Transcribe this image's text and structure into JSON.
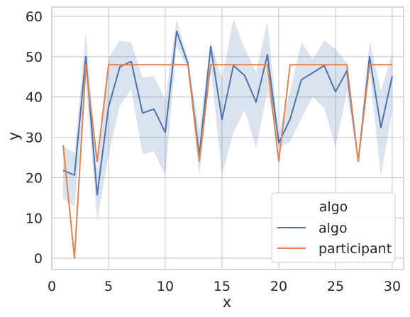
{
  "chart_data": {
    "type": "line",
    "title": "",
    "xlabel": "x",
    "ylabel": "y",
    "xlim": [
      0,
      31
    ],
    "ylim": [
      -2.8,
      62.3
    ],
    "xticks": [
      0,
      5,
      10,
      15,
      20,
      25,
      30
    ],
    "yticks": [
      0,
      10,
      20,
      30,
      40,
      50,
      60
    ],
    "grid": true,
    "legend": {
      "title": "algo",
      "placement": "bottom-right"
    },
    "x": [
      1,
      2,
      3,
      4,
      5,
      6,
      7,
      8,
      9,
      10,
      11,
      12,
      13,
      14,
      15,
      16,
      17,
      18,
      19,
      20,
      21,
      22,
      23,
      24,
      25,
      26,
      27,
      28,
      29,
      30
    ],
    "series": [
      {
        "name": "algo",
        "color": "#4c72b0",
        "values": [
          21.8,
          20.6,
          50.0,
          15.7,
          37.5,
          47.5,
          48.8,
          36.0,
          37.0,
          31.2,
          56.3,
          48.3,
          25.5,
          52.5,
          34.4,
          47.8,
          45.3,
          38.7,
          50.5,
          28.6,
          34.5,
          44.3,
          46.0,
          47.8,
          41.3,
          46.5,
          24.0,
          50.0,
          32.4,
          45.2
        ],
        "ci_lower": [
          14.8,
          12.9,
          44.0,
          9.2,
          25.5,
          37.9,
          41.8,
          25.8,
          26.5,
          20.4,
          52.6,
          46.8,
          20.5,
          47.2,
          20.8,
          31.2,
          36.7,
          27.2,
          41.5,
          27.5,
          28.9,
          34.8,
          40.0,
          37.2,
          27.5,
          41.3,
          24.0,
          46.5,
          20.3,
          36.7
        ],
        "ci_upper": [
          27.7,
          26.2,
          56.1,
          21.8,
          49.6,
          54.0,
          53.5,
          44.8,
          45.2,
          39.3,
          59.3,
          49.3,
          31.5,
          53.8,
          44.5,
          59.3,
          52.0,
          46.2,
          58.8,
          30.8,
          41.5,
          53.5,
          49.4,
          54.0,
          51.9,
          48.4,
          24.0,
          54.0,
          41.6,
          50.7
        ]
      },
      {
        "name": "participant",
        "color": "#dd8452",
        "values": [
          28,
          0,
          48,
          24,
          48,
          48,
          48,
          48,
          48,
          48,
          48,
          48,
          24,
          48,
          48,
          48,
          48,
          48,
          48,
          24,
          48,
          48,
          48,
          48,
          48,
          48,
          24,
          48,
          48,
          48
        ]
      }
    ],
    "legend_title": "algo",
    "legend_entries": [
      "algo",
      "participant"
    ]
  },
  "colors": {
    "ci_fill": "#4c72b0",
    "grid": "#cccccc",
    "text": "#262626"
  }
}
